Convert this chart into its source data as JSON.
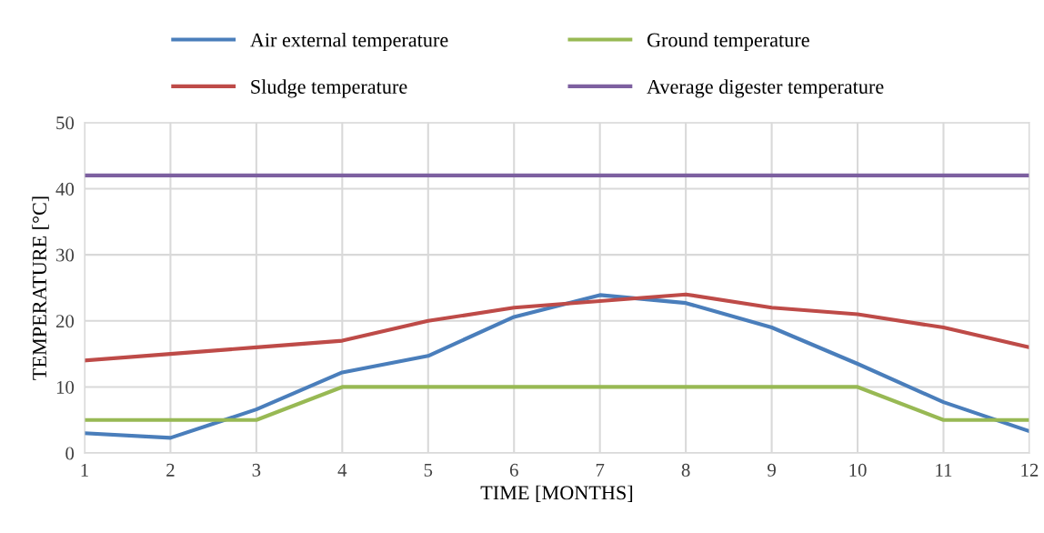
{
  "chart_data": {
    "type": "line",
    "xlabel": "TIME [MONTHS]",
    "ylabel": "TEMPERATURE [°C]",
    "x": [
      1,
      2,
      3,
      4,
      5,
      6,
      7,
      8,
      9,
      10,
      11,
      12
    ],
    "series": [
      {
        "name": "Air external temperature",
        "color": "#4a7ebb",
        "values": [
          3.0,
          2.3,
          6.6,
          12.2,
          14.7,
          20.6,
          23.9,
          22.7,
          19.0,
          13.5,
          7.7,
          3.3
        ]
      },
      {
        "name": "Sludge temperature",
        "color": "#be4b48",
        "values": [
          14,
          15,
          16,
          17,
          20,
          22,
          23,
          24,
          22,
          21,
          19,
          16
        ]
      },
      {
        "name": "Ground temperature",
        "color": "#98b954",
        "values": [
          5,
          5,
          5,
          10,
          10,
          10,
          10,
          10,
          10,
          10,
          5,
          5
        ]
      },
      {
        "name": "Average digester temperature",
        "color": "#7d60a0",
        "values": [
          42,
          42,
          42,
          42,
          42,
          42,
          42,
          42,
          42,
          42,
          42,
          42
        ]
      }
    ],
    "xlim": [
      1,
      12
    ],
    "xticks": [
      1,
      2,
      3,
      4,
      5,
      6,
      7,
      8,
      9,
      10,
      11,
      12
    ],
    "ylim": [
      0,
      50
    ],
    "yticks": [
      0,
      10,
      20,
      30,
      40,
      50
    ],
    "grid": true,
    "legend": "top",
    "marker": "none",
    "line_style": "solid"
  }
}
